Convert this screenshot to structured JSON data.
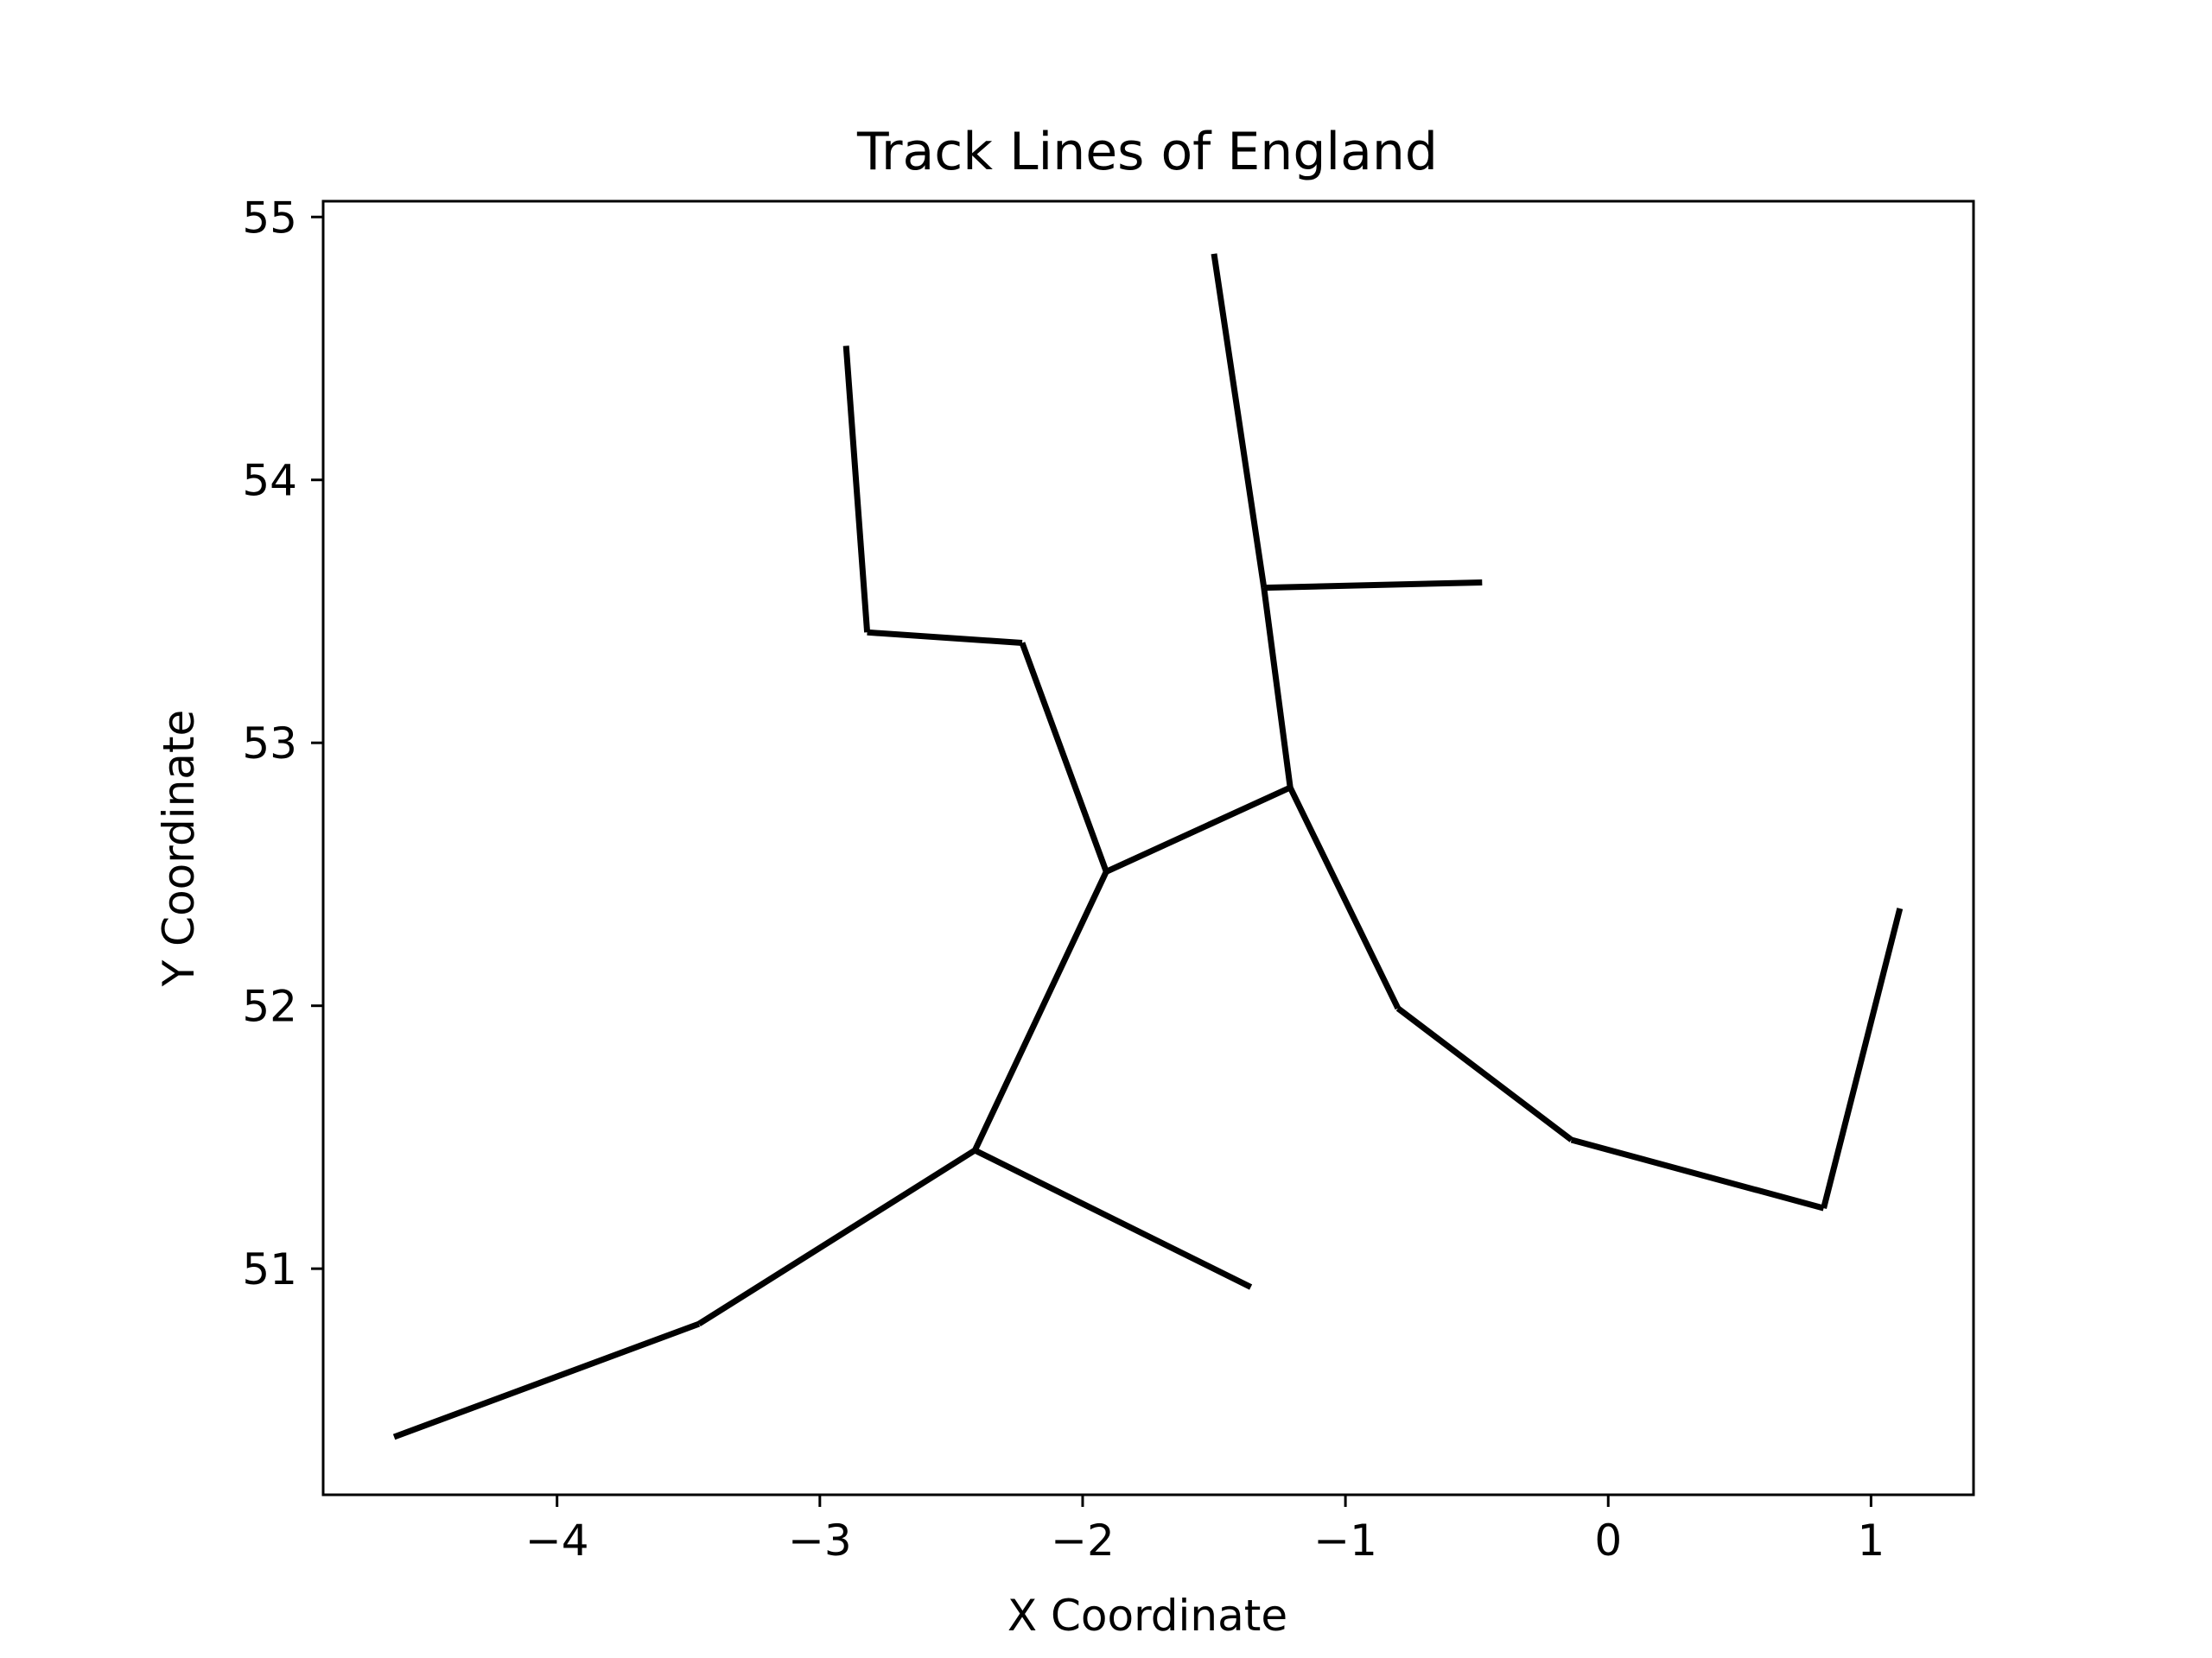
{
  "chart_data": {
    "type": "line",
    "title": "Track Lines of England",
    "xlabel": "X Coordinate",
    "ylabel": "Y Coordinate",
    "xlim": [
      -4.89,
      1.39
    ],
    "ylim": [
      50.14,
      55.06
    ],
    "xticks": [
      {
        "value": -4,
        "label": "−4"
      },
      {
        "value": -3,
        "label": "−3"
      },
      {
        "value": -2,
        "label": "−2"
      },
      {
        "value": -1,
        "label": "−1"
      },
      {
        "value": 0,
        "label": "0"
      },
      {
        "value": 1,
        "label": "1"
      }
    ],
    "yticks": [
      {
        "value": 51,
        "label": "51"
      },
      {
        "value": 52,
        "label": "52"
      },
      {
        "value": 53,
        "label": "53"
      },
      {
        "value": 54,
        "label": "54"
      },
      {
        "value": 55,
        "label": "55"
      }
    ],
    "grid": false,
    "line_color": "#000000",
    "segments": [
      {
        "x": [
          -4.62,
          -3.46
        ],
        "y": [
          50.36,
          50.79
        ]
      },
      {
        "x": [
          -3.46,
          -2.41
        ],
        "y": [
          50.79,
          51.45
        ]
      },
      {
        "x": [
          -2.41,
          -1.36
        ],
        "y": [
          51.45,
          50.93
        ]
      },
      {
        "x": [
          -2.41,
          -1.91
        ],
        "y": [
          51.45,
          52.51
        ]
      },
      {
        "x": [
          -1.91,
          -2.23
        ],
        "y": [
          52.51,
          53.38
        ]
      },
      {
        "x": [
          -2.23,
          -2.82
        ],
        "y": [
          53.38,
          53.42
        ]
      },
      {
        "x": [
          -2.82,
          -2.9
        ],
        "y": [
          53.42,
          54.51
        ]
      },
      {
        "x": [
          -1.91,
          -1.21
        ],
        "y": [
          52.51,
          52.83
        ]
      },
      {
        "x": [
          -1.21,
          -1.31
        ],
        "y": [
          52.83,
          53.59
        ]
      },
      {
        "x": [
          -1.31,
          -1.5
        ],
        "y": [
          53.59,
          54.86
        ]
      },
      {
        "x": [
          -1.31,
          -0.48
        ],
        "y": [
          53.59,
          53.61
        ]
      },
      {
        "x": [
          -1.21,
          -0.8
        ],
        "y": [
          52.83,
          51.99
        ]
      },
      {
        "x": [
          -0.8,
          -0.14
        ],
        "y": [
          51.99,
          51.49
        ]
      },
      {
        "x": [
          -0.14,
          0.82
        ],
        "y": [
          51.49,
          51.23
        ]
      },
      {
        "x": [
          0.82,
          1.11
        ],
        "y": [
          51.23,
          52.37
        ]
      }
    ]
  }
}
